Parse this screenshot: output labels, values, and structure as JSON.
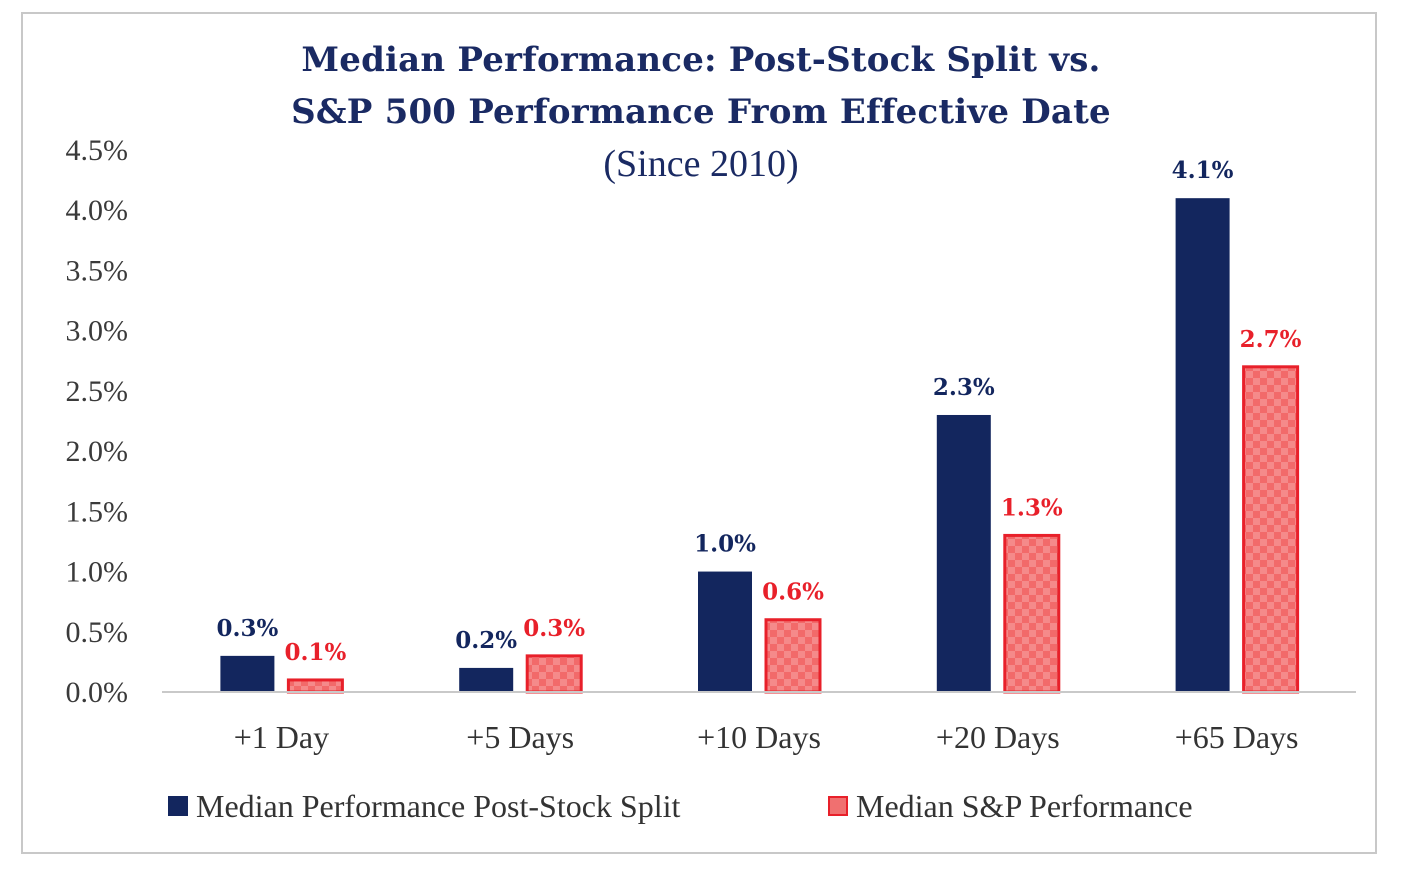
{
  "chart_data": {
    "type": "bar",
    "title": "Median Performance: Post-Stock Split vs.",
    "title_line2": "S&P 500 Performance From Effective Date",
    "subtitle": "(Since 2010)",
    "categories": [
      "+1 Day",
      "+5 Days",
      "+10 Days",
      "+20 Days",
      "+65 Days"
    ],
    "series": [
      {
        "name": "Median Performance Post-Stock Split",
        "color": "#13265e",
        "values": [
          0.3,
          0.2,
          1.0,
          2.3,
          4.1
        ],
        "labels": [
          "0.3%",
          "0.2%",
          "1.0%",
          "2.3%",
          "4.1%"
        ]
      },
      {
        "name": "Median S&P Performance",
        "color": "#f07070",
        "border": "#e8202a",
        "label_color": "#e8202a",
        "values": [
          0.1,
          0.3,
          0.6,
          1.3,
          2.7
        ],
        "labels": [
          "0.1%",
          "0.3%",
          "0.6%",
          "1.3%",
          "2.7%"
        ]
      }
    ],
    "ylim": [
      0,
      4.5
    ],
    "yticks": [
      "0.0%",
      "0.5%",
      "1.0%",
      "1.5%",
      "2.0%",
      "2.5%",
      "3.0%",
      "3.5%",
      "4.0%",
      "4.5%"
    ],
    "xlabel": "",
    "ylabel": "",
    "grid": false,
    "legend_position": "bottom"
  }
}
